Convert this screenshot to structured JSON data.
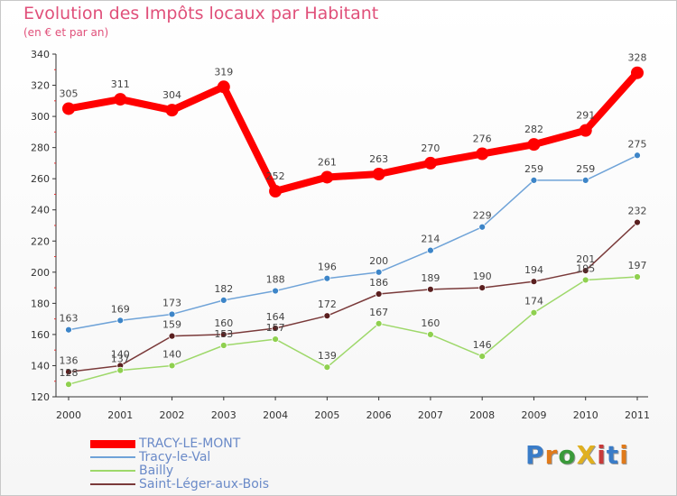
{
  "title": "Evolution des Impôts locaux par Habitant",
  "subtitle": "(en € et par an)",
  "logo": {
    "text": "ProXiti",
    "colors": [
      "#3a7cc8",
      "#e07a1a",
      "#3a9a3a",
      "#e0b020",
      "#c83a3a",
      "#3a7cc8",
      "#e07a1a"
    ]
  },
  "chart_data": {
    "type": "line",
    "title": "Evolution des Impôts locaux par Habitant",
    "subtitle": "(en € et par an)",
    "xlabel": "",
    "ylabel": "",
    "ylim": [
      120,
      340
    ],
    "yticks": [
      120,
      140,
      160,
      180,
      200,
      220,
      240,
      260,
      280,
      300,
      320,
      340
    ],
    "grid": false,
    "legend": "bottom-left",
    "categories": [
      "2000",
      "2001",
      "2002",
      "2003",
      "2004",
      "2005",
      "2006",
      "2007",
      "2008",
      "2009",
      "2010",
      "2011"
    ],
    "series": [
      {
        "name": "TRACY-LE-MONT",
        "color": "#ff0000",
        "values": [
          305,
          311,
          304,
          319,
          252,
          261,
          263,
          270,
          276,
          282,
          291,
          328
        ]
      },
      {
        "name": "Tracy-le-Val",
        "color": "#6fa3d8",
        "values": [
          163,
          169,
          173,
          182,
          188,
          196,
          200,
          214,
          229,
          259,
          259,
          275
        ]
      },
      {
        "name": "Bailly",
        "color": "#9ed86a",
        "values": [
          128,
          137,
          140,
          153,
          157,
          139,
          167,
          160,
          146,
          174,
          195,
          197
        ]
      },
      {
        "name": "Saint-Léger-aux-Bois",
        "color": "#7a3a3a",
        "values": [
          136,
          140,
          159,
          160,
          164,
          172,
          186,
          189,
          190,
          194,
          201,
          232
        ]
      }
    ]
  }
}
